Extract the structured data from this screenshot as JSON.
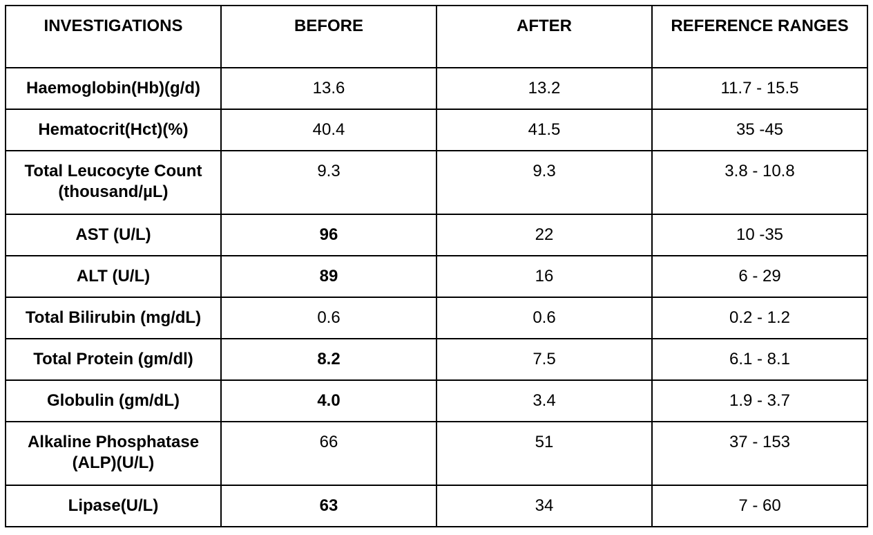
{
  "headers": [
    "INVESTIGATIONS",
    "BEFORE",
    "AFTER",
    "REFERENCE RANGES"
  ],
  "rows": [
    {
      "name": "Haemoglobin(Hb)(g/d)",
      "before": "13.6",
      "after": "13.2",
      "range": "11.7 - 15.5",
      "before_abnormal": false
    },
    {
      "name": "Hematocrit(Hct)(%)",
      "before": "40.4",
      "after": "41.5",
      "range": "35 -45",
      "before_abnormal": false
    },
    {
      "name": "Total Leucocyte Count (thousand/µL)",
      "before": "9.3",
      "after": "9.3",
      "range": "3.8 - 10.8",
      "before_abnormal": false
    },
    {
      "name": "AST (U/L)",
      "before": "96",
      "after": "22",
      "range": "10 -35",
      "before_abnormal": true
    },
    {
      "name": "ALT (U/L)",
      "before": "89",
      "after": "16",
      "range": "6 - 29",
      "before_abnormal": true
    },
    {
      "name": "Total Bilirubin (mg/dL)",
      "before": "0.6",
      "after": "0.6",
      "range": "0.2 - 1.2",
      "before_abnormal": false
    },
    {
      "name": "Total Protein (gm/dl)",
      "before": "8.2",
      "after": "7.5",
      "range": "6.1 - 8.1",
      "before_abnormal": true
    },
    {
      "name": "Globulin (gm/dL)",
      "before": "4.0",
      "after": "3.4",
      "range": "1.9 - 3.7",
      "before_abnormal": true
    },
    {
      "name": "Alkaline Phosphatase (ALP)(U/L)",
      "before": "66",
      "after": "51",
      "range": "37 - 153",
      "before_abnormal": false
    },
    {
      "name": "Lipase(U/L)",
      "before": "63",
      "after": "34",
      "range": "7 - 60",
      "before_abnormal": true
    }
  ]
}
